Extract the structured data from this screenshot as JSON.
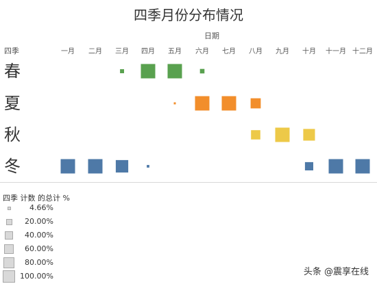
{
  "chart_data": {
    "type": "heatmap",
    "title": "四季月份分布情况",
    "xlabel": "日期",
    "ylabel": "四季",
    "categories": [
      "一月",
      "二月",
      "三月",
      "四月",
      "五月",
      "六月",
      "七月",
      "八月",
      "九月",
      "十月",
      "十一月",
      "十二月"
    ],
    "series": [
      {
        "name": "春",
        "color": "#59a14f",
        "values": [
          null,
          null,
          4.66,
          60.0,
          60.0,
          6.0,
          null,
          null,
          null,
          null,
          null,
          null
        ]
      },
      {
        "name": "夏",
        "color": "#f28e2b",
        "values": [
          null,
          null,
          null,
          null,
          1.0,
          60.0,
          60.0,
          30.0,
          null,
          null,
          null,
          null
        ]
      },
      {
        "name": "秋",
        "color": "#edc948",
        "values": [
          null,
          null,
          null,
          null,
          null,
          null,
          null,
          25.0,
          60.0,
          40.0,
          null,
          null
        ]
      },
      {
        "name": "冬",
        "color": "#4e79a7",
        "values": [
          60.0,
          60.0,
          45.0,
          2.0,
          null,
          null,
          null,
          null,
          null,
          20.0,
          60.0,
          60.0
        ]
      }
    ],
    "size_legend": {
      "title": "四季 计数 的总计 %",
      "items": [
        "4.66%",
        "20.00%",
        "40.00%",
        "60.00%",
        "80.00%",
        "100.00%"
      ],
      "values": [
        4.66,
        20,
        40,
        60,
        80,
        100
      ]
    }
  },
  "watermark": "头条 @震享在线"
}
